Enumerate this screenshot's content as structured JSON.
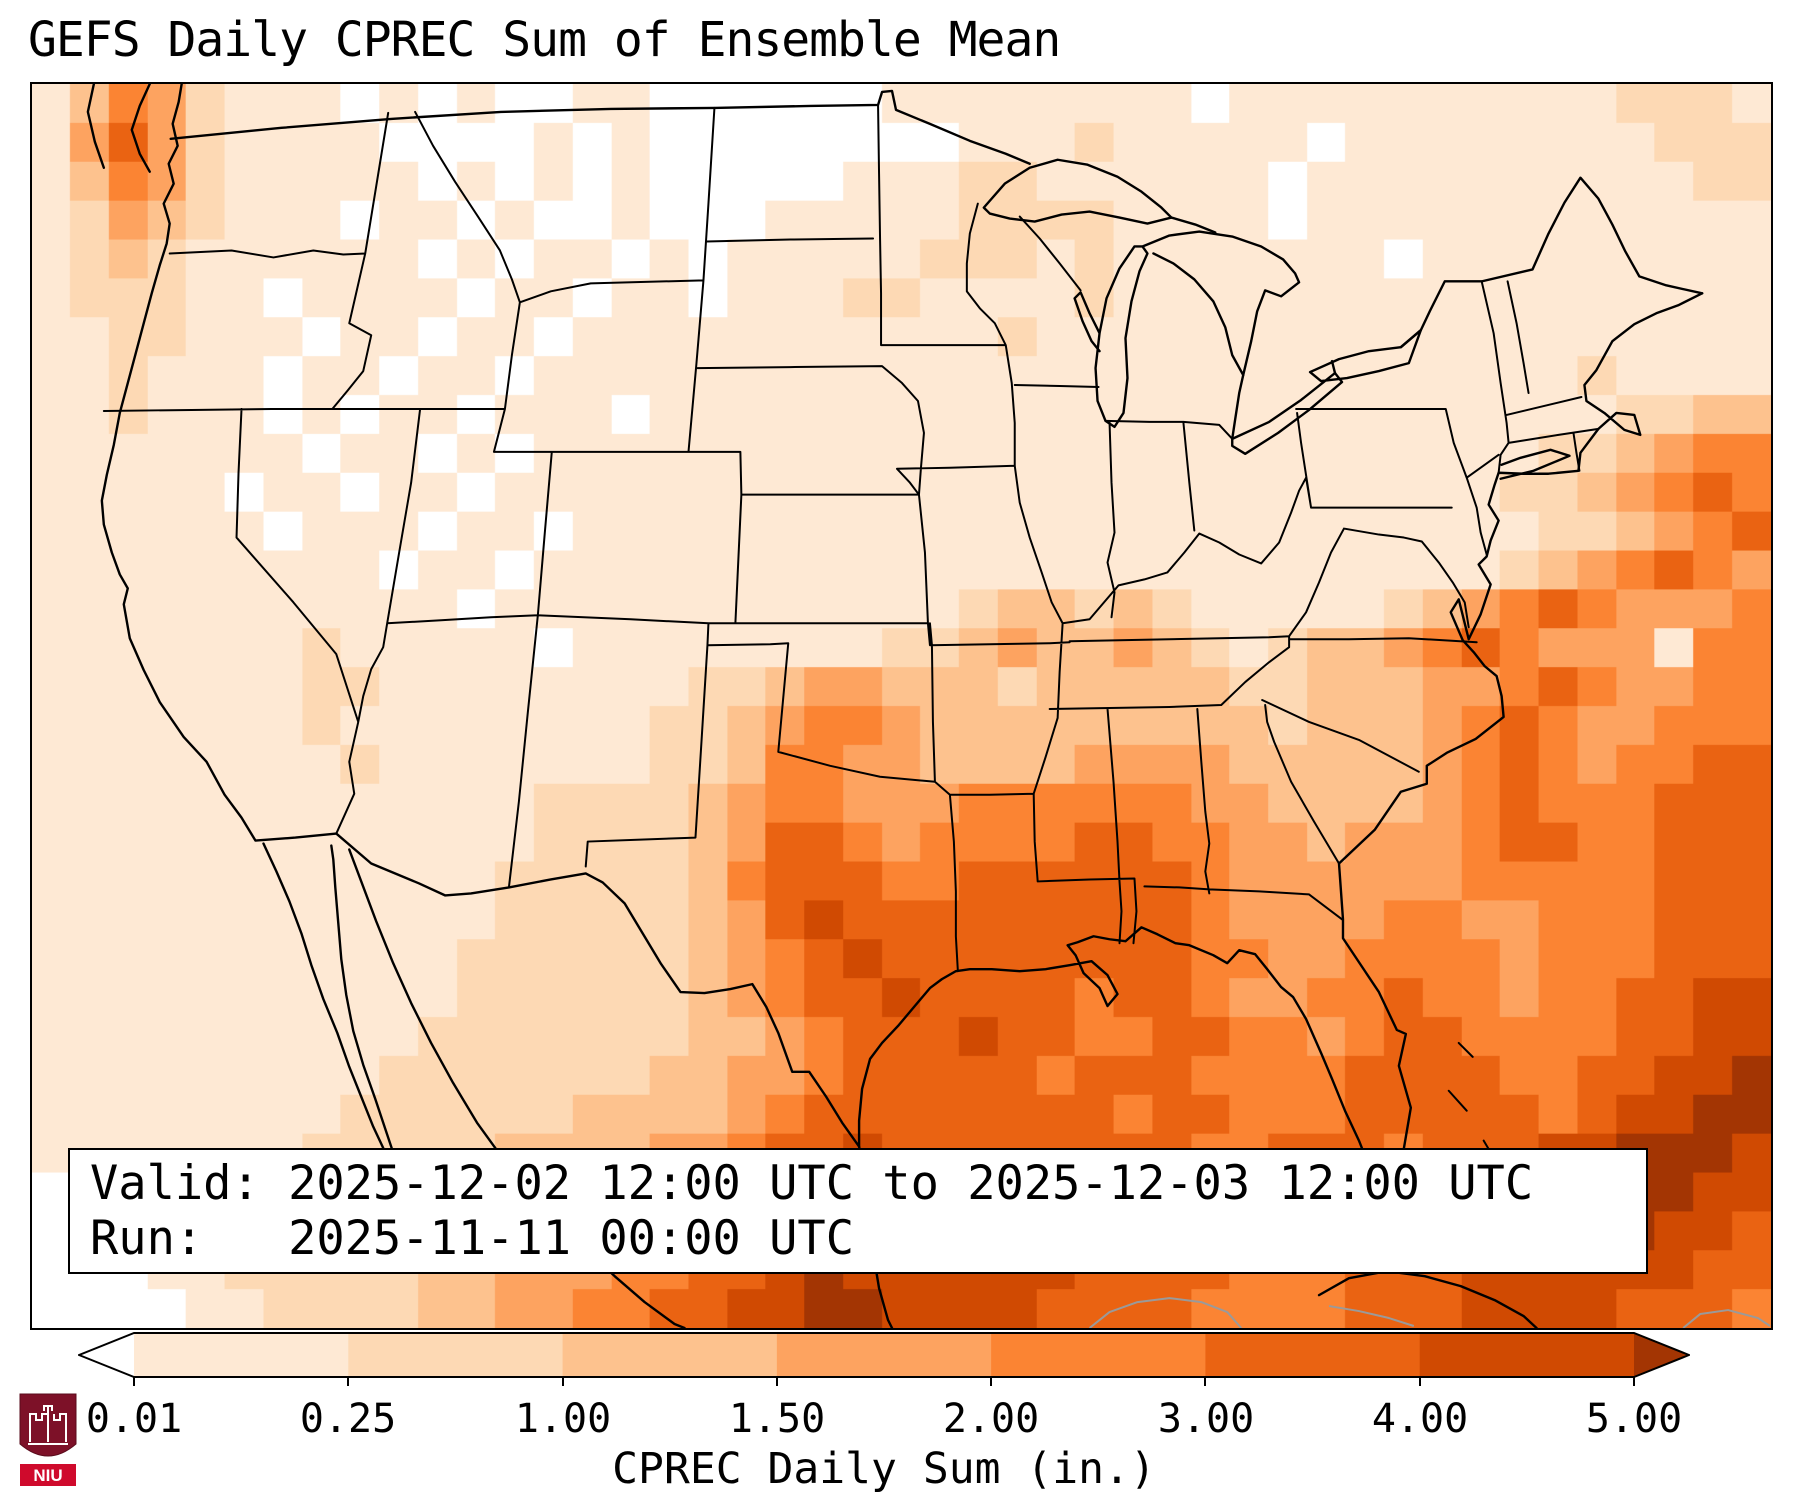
{
  "title": "GEFS Daily CPREC Sum of Ensemble Mean",
  "info_box": {
    "line1": "Valid: 2025-12-02 12:00 UTC to 2025-12-03 12:00 UTC",
    "line2": "Run:   2025-11-11 00:00 UTC"
  },
  "colorbar": {
    "label": "CPREC Daily Sum (in.)",
    "ticks": [
      "0.01",
      "0.25",
      "1.00",
      "1.50",
      "2.00",
      "3.00",
      "4.00",
      "5.00"
    ],
    "segment_colors": [
      "#fee9d4",
      "#fdd9b4",
      "#fdc28e",
      "#fda360",
      "#fb8433",
      "#ea6312",
      "#d04a02"
    ],
    "under_color": "#ffffff",
    "over_color": "#a33503",
    "outline_color": "#000000"
  },
  "logo": {
    "text": "NIU",
    "shield_color": "#7d1128",
    "band_color": "#cf0a2c"
  },
  "chart_data": {
    "type": "heatmap",
    "title": "GEFS Daily CPREC Sum of Ensemble Mean",
    "colorbar_label": "CPREC Daily Sum (in.)",
    "units": "inches per day",
    "region": "Continental United States, southern Canada, Mexico, Gulf of Mexico, Caribbean, western Atlantic",
    "valid": "2025-12-02 12:00 UTC to 2025-12-03 12:00 UTC",
    "run": "2025-11-11 00:00 UTC",
    "levels_in": [
      0.01,
      0.25,
      1.0,
      1.5,
      2.0,
      3.0,
      4.0,
      5.0
    ],
    "bin_colors": [
      "#ffffff",
      "#fee9d4",
      "#fdd9b4",
      "#fdc28e",
      "#fda360",
      "#fb8433",
      "#ea6312",
      "#d04a02",
      "#a33503"
    ],
    "bin_ranges_in": [
      "<0.01",
      "0.01-0.25",
      "0.25-1.00",
      "1.00-1.50",
      "1.50-2.00",
      "2.00-3.00",
      "3.00-4.00",
      "4.00-5.00",
      ">5.00"
    ],
    "notable_features": [
      "Orange band of 1.5-3 in. along Pacific Northwest coast",
      "Near-zero precipitation over northern Plains and Rockies",
      "Heavy 2-5+ in. over Gulf of Mexico, Texas/Louisiana coast and Southeast",
      "Diagonal heavy band over western Atlantic off the East Coast",
      "Very heavy >4 in. over Caribbean and lower right of domain"
    ],
    "grid": {
      "cols": 45,
      "rows": 32,
      "encoding": "each character is a precipitation bin index 0-8 into bin_colors / bin_ranges_in",
      "rows_data": [
        "135421110101001100000011111111011111111112221",
        "146421111000010100000000111211111011111111222",
        "135421111101010100000111221111110111111111122",
        "124321110110100100011111222211110111111111111",
        "123211111101011010111112221211111110111111111",
        "122211011110110110111221111211111111111111111",
        "112211101101101111111111121111111111111111111",
        "112111011011011111111111111111111111111121111",
        "112111010110111011111111111111111111111112233",
        "111111101101011111111111111111111111111223455",
        "111110110110111111111111111111111111112234565",
        "111111011101101111111111111111111111111223456",
        "111111111011011111111111111111111111112345654",
        "111111111110111111111111233232111112345654445",
        "111111121111101111111122343343212334565444 55",
        "111111122111111112234433323333322333445654455",
        "111111121111111122345543333333332333456544555",
        "111111112111111122355443333444433333456545566",
        "111111111111122223455444555555443333456555666",
        "111111111111122223466545555665544344456655666",
        "111111111111222223566655666666544444455555666",
        "111111111111222223467666666666544445544555666",
        "111111111112222223456766666666554455554555666",
        "111111111112222223456676666566544556554556677",
        "111111111122222223345666766556655456655556677",
        "111111111222222233445666665666555566665566778",
        "111111112222223333456666666656655566666567788",
        "111111122222333344566766666666556665666778887",
        "011111222223333445567776666666655665567788877",
        "001112222233344455677777766666655665667788776",
        "000112222233444556678777777666655566677777766",
        "000011222233445566778877776666555566677776665"
      ]
    }
  }
}
